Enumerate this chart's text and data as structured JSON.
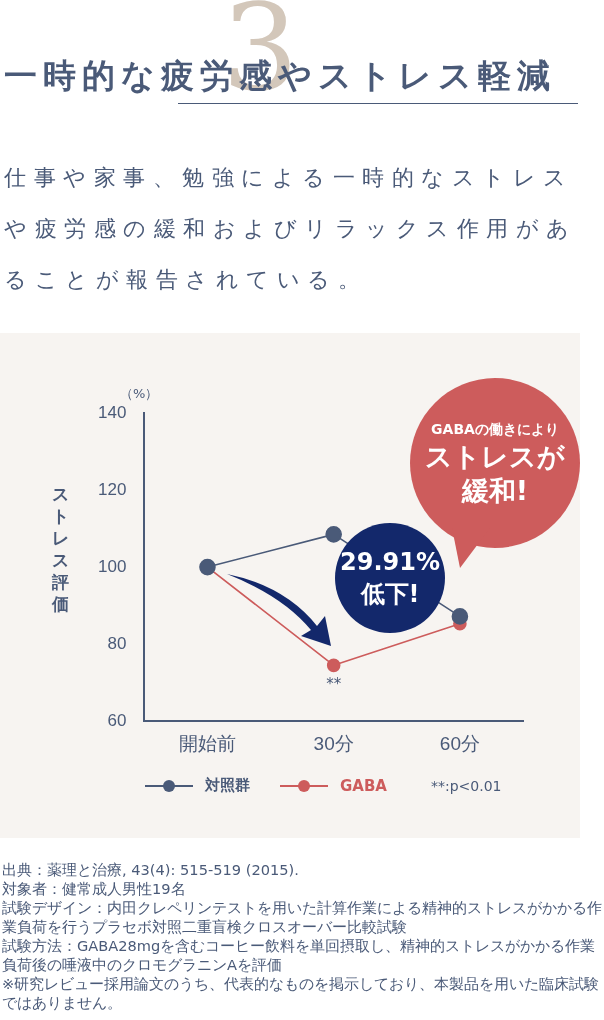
{
  "chart_data": {
    "type": "line",
    "title": "一時的な疲労感やストレス軽減",
    "subtitle": "仕事や家事、勉強による一時的なストレスや疲労感の緩和およびリラックス作用があることが報告されている。",
    "ylabel": "ストレス評価",
    "categories": [
      "開始前",
      "30分",
      "60分"
    ],
    "series": [
      {
        "name": "対照群",
        "color": "#4a5a78",
        "values": [
          100,
          108.5,
          87.2
        ]
      },
      {
        "name": "GABA",
        "color": "#cd5c5c",
        "values": [
          100,
          74.5,
          85.3
        ]
      }
    ],
    "ylim": [
      60,
      140
    ],
    "yticks": [
      60,
      80,
      100,
      120,
      140
    ],
    "grid": false,
    "legend": "bottom",
    "marker": "circle",
    "line_style": "solid",
    "annotations": [
      "3",
      "（%）",
      {
        "text": "**",
        "x": "30分",
        "y": 74.5
      },
      "**:p<0.01",
      "GABAの働きにより",
      "ストレスが",
      "緩和!",
      "29.91%\n低下!",
      "出典：薬理と治療, 43(4): 515-519 (2015).",
      "対象者：健常成人男性19名",
      "試験デザイン：内田クレペリンテストを用いた計算作業による精神的ストレスがかかる作業負荷を行うプラセボ対照二重盲検クロスオーバー比較試験",
      "試験方法：GABA28mgを含むコーヒー飲料を単回摂取し、精神的ストレスがかかる作業負荷後の唾液中のクロモグラニンAを評価",
      "※研究レビュー採用論文のうち、代表的なものを掲示しており、本製品を用いた臨床試験ではありません。"
    ]
  }
}
